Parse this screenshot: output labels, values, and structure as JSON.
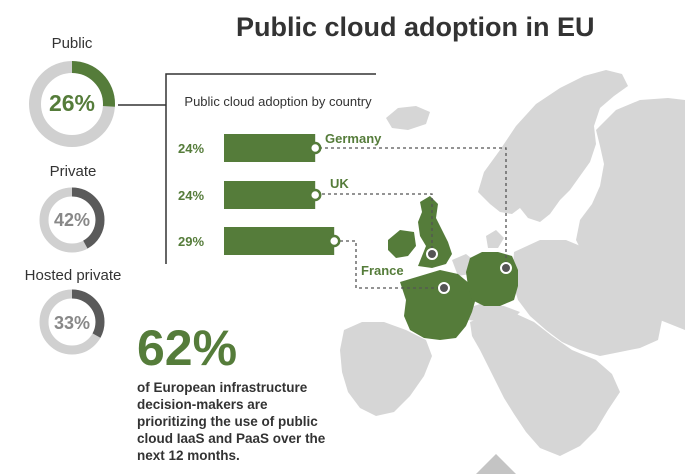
{
  "title": "Public cloud adoption in EU",
  "colors": {
    "accent_green": "#557c3a",
    "ring_track": "#d0d0d0",
    "ring_dark": "#5a5a5a",
    "map_land": "#d6d6d6",
    "map_border": "#ffffff"
  },
  "chart_data": [
    {
      "type": "pie",
      "subtype": "donut",
      "series": [
        {
          "name": "Public",
          "value": 26,
          "label": "26%",
          "color": "#557c3a"
        },
        {
          "name": "Private",
          "value": 42,
          "label": "42%",
          "color": "#5a5a5a"
        },
        {
          "name": "Hosted private",
          "value": 33,
          "label": "33%",
          "color": "#5a5a5a"
        }
      ]
    },
    {
      "type": "bar",
      "orientation": "horizontal",
      "title": "Public cloud adoption by country",
      "categories": [
        "Germany",
        "UK",
        "France"
      ],
      "values": [
        24,
        24,
        29
      ],
      "value_labels": [
        "24%",
        "24%",
        "29%"
      ]
    }
  ],
  "stat": {
    "value": "62%",
    "lines": [
      "of European infrastructure",
      "decision-makers are",
      "prioritizing the use of public",
      "cloud IaaS and PaaS over the",
      "next 12 months."
    ]
  }
}
